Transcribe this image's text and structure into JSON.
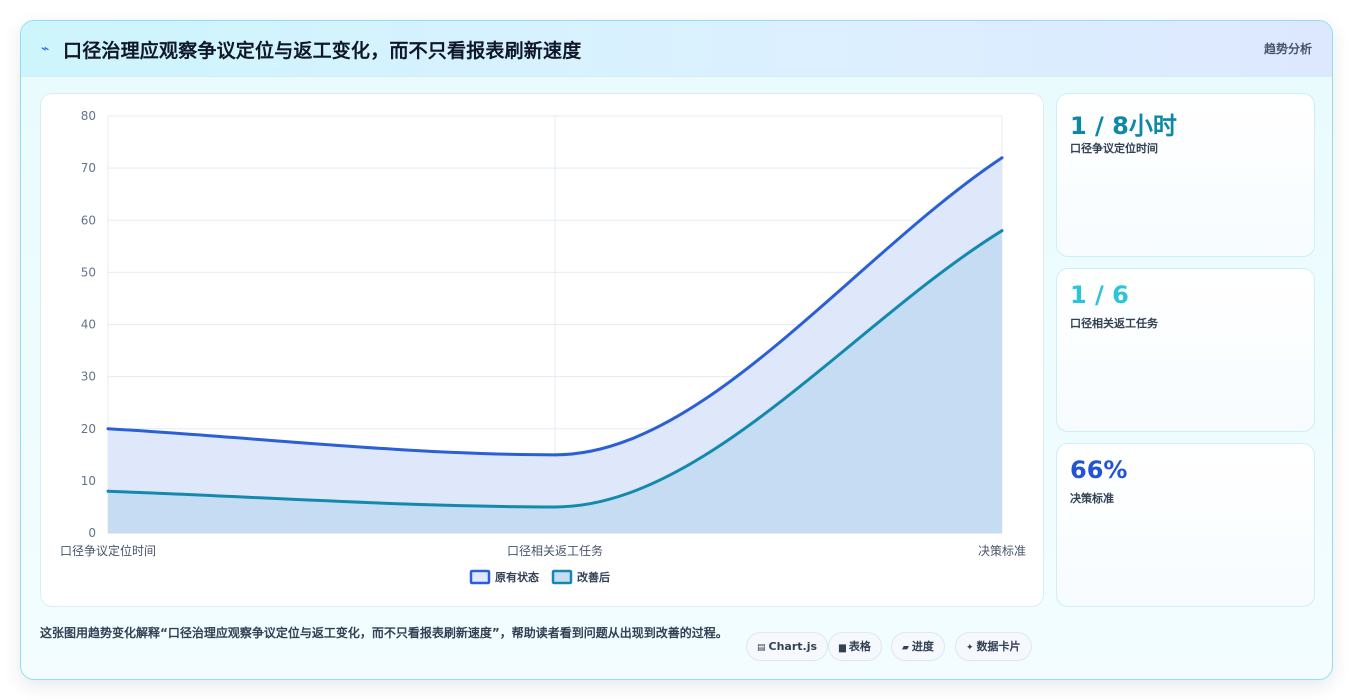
{
  "header": {
    "icon": "wave-icon",
    "title": "口径治理应观察争议定位与返工变化，而不只看报表刷新速度",
    "tag": "趋势分析"
  },
  "chart_data": {
    "type": "area",
    "categories": [
      "口径争议定位时间",
      "口径相关返工任务",
      "决策标准"
    ],
    "series": [
      {
        "name": "原有状态",
        "values": [
          20,
          15,
          72
        ],
        "color": "#2b5fd6",
        "fill": "#dfe7fb"
      },
      {
        "name": "改善后",
        "values": [
          8,
          5,
          58
        ],
        "color": "#138aad",
        "fill": "#c5dcf2"
      }
    ],
    "ylim": [
      0,
      80
    ],
    "yticks": [
      0,
      10,
      20,
      30,
      40,
      50,
      60,
      70,
      80
    ],
    "grid": true,
    "legend": "bottom"
  },
  "kpis": [
    {
      "value": "1 / 8小时",
      "label": "口径争议定位时间",
      "color": "#0e88a8"
    },
    {
      "value": "1 / 6",
      "label": "口径相关返工任务",
      "color": "#2cc4dc"
    },
    {
      "value": "66%",
      "label": "决策标准",
      "color": "#2354d6"
    }
  ],
  "footer": {
    "description": "这张图用趋势变化解释“口径治理应观察争议定位与返工变化，而不只看报表刷新速度”，帮助读者看到问题从出现到改善的过程。",
    "chips": [
      {
        "icon": "chart-icon",
        "glyph": "▤",
        "label": "Chart.js"
      },
      {
        "icon": "table-icon",
        "glyph": "▆",
        "label": "表格"
      },
      {
        "icon": "progress-icon",
        "glyph": "▰",
        "label": "进度"
      },
      {
        "icon": "sparkle-icon",
        "glyph": "✦",
        "label": "数据卡片"
      }
    ]
  }
}
